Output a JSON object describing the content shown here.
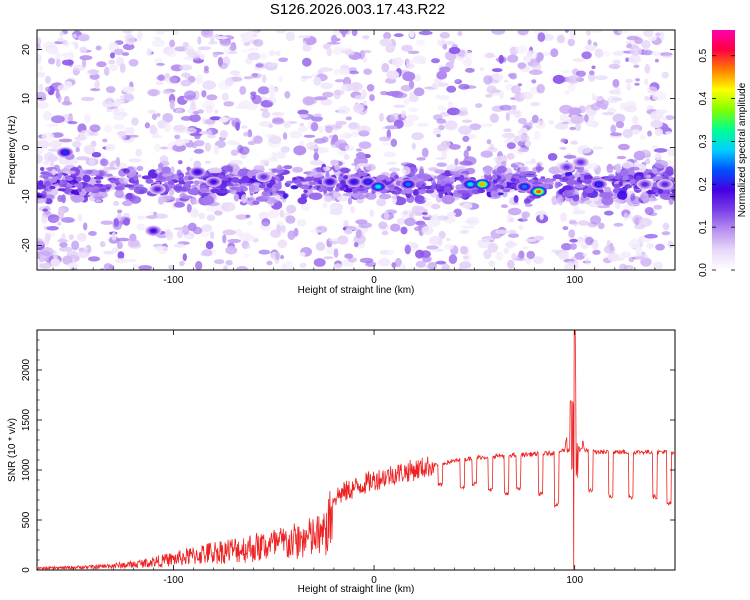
{
  "title": "S126.2026.003.17.43.R22",
  "chart_data": [
    {
      "type": "heatmap",
      "xlabel": "Height of straight line (km)",
      "ylabel": "Frequency (Hz)",
      "xlim": [
        -168,
        150
      ],
      "ylim": [
        -25,
        24
      ],
      "xticks": [
        -100,
        0,
        100
      ],
      "yticks": [
        -20,
        -10,
        0,
        10,
        20
      ],
      "colorbar": {
        "label": "Normalized spectral amplitude",
        "range": [
          0.0,
          0.56
        ],
        "ticks": [
          "0.0",
          "0.1",
          "0.2",
          "0.3",
          "0.4",
          "0.5"
        ],
        "colormap": [
          "#ffffff",
          "#e8d8f8",
          "#b890f0",
          "#7a3fe8",
          "#4400e0",
          "#0050ff",
          "#00d0ff",
          "#00ff90",
          "#80ff00",
          "#ffff00",
          "#ff8000",
          "#ff0040",
          "#ff00b0"
        ]
      },
      "band": {
        "freq_hz": -7.5,
        "extent_km": [
          -168,
          150
        ]
      },
      "hotspots": [
        {
          "x": -154,
          "y": -1,
          "amp": 0.22
        },
        {
          "x": -110,
          "y": -17,
          "amp": 0.18
        },
        {
          "x": -108,
          "y": -8.5,
          "amp": 0.16
        },
        {
          "x": -88,
          "y": -5,
          "amp": 0.2
        },
        {
          "x": -80,
          "y": -7,
          "amp": 0.18
        },
        {
          "x": -55,
          "y": -6,
          "amp": 0.15
        },
        {
          "x": -22,
          "y": -7,
          "amp": 0.2
        },
        {
          "x": -10,
          "y": -7,
          "amp": 0.2
        },
        {
          "x": -3,
          "y": -7,
          "amp": 0.22
        },
        {
          "x": 2,
          "y": -8,
          "amp": 0.3
        },
        {
          "x": 17,
          "y": -7.5,
          "amp": 0.25
        },
        {
          "x": 48,
          "y": -7.5,
          "amp": 0.3
        },
        {
          "x": 54,
          "y": -7.5,
          "amp": 0.45
        },
        {
          "x": 75,
          "y": -8,
          "amp": 0.25
        },
        {
          "x": 82,
          "y": -9,
          "amp": 0.48
        },
        {
          "x": 96,
          "y": -4,
          "amp": 0.15
        },
        {
          "x": 103,
          "y": -3,
          "amp": 0.15
        },
        {
          "x": 112,
          "y": -7.5,
          "amp": 0.22
        },
        {
          "x": 135,
          "y": -7.5,
          "amp": 0.16
        },
        {
          "x": 145,
          "y": -7.5,
          "amp": 0.16
        }
      ]
    },
    {
      "type": "line",
      "xlabel": "Height of straight line (km)",
      "ylabel": "SNR (10 * v/v)",
      "xlim": [
        -168,
        150
      ],
      "ylim": [
        0,
        2400
      ],
      "xticks": [
        -100,
        0,
        100
      ],
      "yticks": [
        0,
        500,
        1000,
        1500,
        2000
      ],
      "series": [
        {
          "color": "#ee2222",
          "envelope_x": [
            -168,
            -140,
            -120,
            -100,
            -80,
            -60,
            -40,
            -25,
            -20,
            -10,
            0,
            10,
            20,
            30,
            40,
            50,
            60,
            70,
            80,
            90,
            95,
            98,
            100,
            102,
            105,
            110,
            120,
            130,
            140,
            150
          ],
          "envelope_y": [
            20,
            40,
            70,
            140,
            230,
            290,
            360,
            450,
            730,
            820,
            900,
            960,
            1000,
            1050,
            1090,
            1120,
            1140,
            1150,
            1160,
            1170,
            1200,
            1600,
            2400,
            1500,
            1200,
            1180,
            1180,
            1180,
            1180,
            1180
          ],
          "dips": [
            {
              "x": 33,
              "y": 830
            },
            {
              "x": 44,
              "y": 810
            },
            {
              "x": 50,
              "y": 840
            },
            {
              "x": 58,
              "y": 780
            },
            {
              "x": 66,
              "y": 740
            },
            {
              "x": 72,
              "y": 800
            },
            {
              "x": 83,
              "y": 740
            },
            {
              "x": 91,
              "y": 630
            },
            {
              "x": 100,
              "y": 0
            },
            {
              "x": 108,
              "y": 780
            },
            {
              "x": 118,
              "y": 720
            },
            {
              "x": 128,
              "y": 710
            },
            {
              "x": 140,
              "y": 710
            },
            {
              "x": 147,
              "y": 640
            }
          ]
        }
      ]
    }
  ]
}
